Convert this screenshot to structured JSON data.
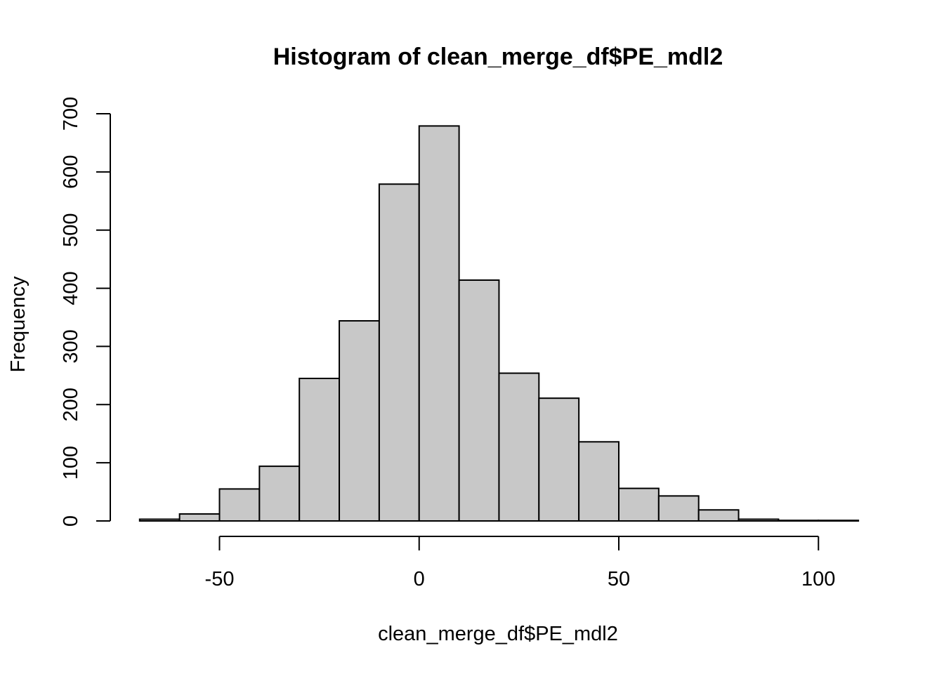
{
  "chart_data": {
    "type": "bar",
    "subtype": "histogram",
    "title": "Histogram of clean_merge_df$PE_mdl2",
    "xlabel": "clean_merge_df$PE_mdl2",
    "ylabel": "Frequency",
    "bin_width": 10,
    "bins": [
      {
        "from": -70,
        "to": -60,
        "count": 3
      },
      {
        "from": -60,
        "to": -50,
        "count": 12
      },
      {
        "from": -50,
        "to": -40,
        "count": 55
      },
      {
        "from": -40,
        "to": -30,
        "count": 94
      },
      {
        "from": -30,
        "to": -20,
        "count": 245
      },
      {
        "from": -20,
        "to": -10,
        "count": 344
      },
      {
        "from": -10,
        "to": 0,
        "count": 579
      },
      {
        "from": 0,
        "to": 10,
        "count": 679
      },
      {
        "from": 10,
        "to": 20,
        "count": 414
      },
      {
        "from": 20,
        "to": 30,
        "count": 254
      },
      {
        "from": 30,
        "to": 40,
        "count": 211
      },
      {
        "from": 40,
        "to": 50,
        "count": 136
      },
      {
        "from": 50,
        "to": 60,
        "count": 56
      },
      {
        "from": 60,
        "to": 70,
        "count": 43
      },
      {
        "from": 70,
        "to": 80,
        "count": 19
      },
      {
        "from": 80,
        "to": 90,
        "count": 3
      },
      {
        "from": 90,
        "to": 100,
        "count": 1
      },
      {
        "from": 100,
        "to": 110,
        "count": 1
      }
    ],
    "xlim": [
      -70,
      110
    ],
    "ylim": [
      0,
      700
    ],
    "x_ticks": [
      -50,
      0,
      50,
      100
    ],
    "x_tick_labels": [
      "-50",
      "0",
      "50",
      "100"
    ],
    "y_ticks": [
      0,
      100,
      200,
      300,
      400,
      500,
      600,
      700
    ],
    "y_tick_labels": [
      "0",
      "100",
      "200",
      "300",
      "400",
      "500",
      "600",
      "700"
    ],
    "bar_color": "#c8c8c8",
    "border_color": "#000000",
    "grid": false,
    "legend": "none"
  }
}
